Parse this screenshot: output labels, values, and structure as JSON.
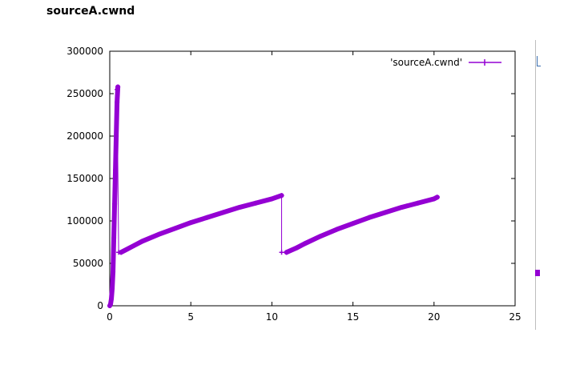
{
  "page": {
    "title": "sourceA.cwnd"
  },
  "colors": {
    "series": "#9400d3",
    "axis": "#000000",
    "background": "#ffffff"
  },
  "chart_data": {
    "type": "line",
    "title": "",
    "xlabel": "",
    "ylabel": "",
    "xlim": [
      0,
      25
    ],
    "ylim": [
      0,
      300000
    ],
    "x_ticks": [
      0,
      5,
      10,
      15,
      20,
      25
    ],
    "y_ticks": [
      0,
      50000,
      100000,
      150000,
      200000,
      250000,
      300000
    ],
    "grid": false,
    "legend_position": "top-right",
    "series": [
      {
        "name": "'sourceA.cwnd'",
        "color": "#9400d3",
        "segments": [
          {
            "x": [
              0.0,
              0.05,
              0.1,
              0.15,
              0.2,
              0.25,
              0.3,
              0.35,
              0.4,
              0.45,
              0.5
            ],
            "y": [
              0,
              2000,
              8000,
              20000,
              40000,
              80000,
              120000,
              160000,
              200000,
              240000,
              258000
            ]
          },
          {
            "x": [
              0.45,
              0.55,
              0.7
            ],
            "y": [
              255000,
              63000,
              63000
            ]
          },
          {
            "x": [
              0.7,
              1.0,
              1.5,
              2.0,
              3.0,
              4.0,
              5.0,
              6.0,
              7.0,
              8.0,
              9.0,
              10.0,
              10.6
            ],
            "y": [
              63000,
              66000,
              71000,
              76000,
              84000,
              91000,
              98000,
              104000,
              110000,
              116000,
              121000,
              126000,
              130000
            ]
          },
          {
            "x": [
              10.6,
              10.6,
              10.9
            ],
            "y": [
              130000,
              63000,
              63000
            ]
          },
          {
            "x": [
              10.9,
              11.5,
              12.0,
              13.0,
              14.0,
              15.0,
              16.0,
              17.0,
              18.0,
              19.0,
              20.0,
              20.2
            ],
            "y": [
              63000,
              68000,
              73000,
              82000,
              90000,
              97000,
              104000,
              110000,
              116000,
              121000,
              126000,
              128000
            ]
          }
        ]
      }
    ]
  }
}
